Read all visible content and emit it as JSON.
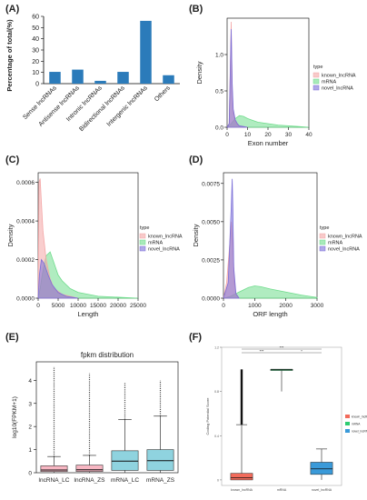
{
  "panels": {
    "A": "(A)",
    "B": "(B)",
    "C": "(C)",
    "D": "(D)",
    "E": "(E)",
    "F": "(F)"
  },
  "colors": {
    "bar": "#2b7bba",
    "known": "#f4a6a6",
    "mrna": "#6fdc8c",
    "novel": "#7b6fd8",
    "box_lnc": "#f7b6c2",
    "box_mrna": "#8fd3df",
    "f_known": "#f26b5b",
    "f_mrna": "#2ecc71",
    "f_novel": "#3a9ad9"
  },
  "chart_data": [
    {
      "id": "A",
      "type": "bar",
      "ylabel": "Percentage of total(%)",
      "ylim": [
        0,
        60
      ],
      "yticks": [
        "0",
        "10",
        "20",
        "30",
        "40",
        "50",
        "60"
      ],
      "categories": [
        "Sense lncRNAs",
        "Antisense lncRNAs",
        "Intronic lncRNAs",
        "Bidirectional lncRNAs",
        "Intergenic lncRNAs",
        "Others"
      ],
      "values": [
        10.5,
        12.5,
        2.5,
        10.5,
        56,
        7.5
      ]
    },
    {
      "id": "B",
      "type": "area",
      "xlabel": "Exon number",
      "ylabel": "Density",
      "xlim": [
        0,
        40
      ],
      "ylim": [
        0,
        1.5
      ],
      "xticks": [
        "0",
        "10",
        "20",
        "30",
        "40"
      ],
      "yticks": [
        "0.0",
        "0.5",
        "1.0"
      ],
      "legend_title": "type",
      "legend": [
        "known_lncRNA",
        "mRNA",
        "novel_lncRNA"
      ],
      "series": [
        {
          "name": "known_lncRNA",
          "x": [
            0,
            1,
            2,
            2.5,
            3,
            4,
            5,
            6,
            8,
            10
          ],
          "y": [
            0,
            0.05,
            1.45,
            0.5,
            0.2,
            0.08,
            0.04,
            0.02,
            0.01,
            0
          ]
        },
        {
          "name": "mRNA",
          "x": [
            0,
            2,
            4,
            6,
            8,
            10,
            12,
            15,
            20,
            25,
            30,
            35,
            40
          ],
          "y": [
            0,
            0.05,
            0.12,
            0.16,
            0.15,
            0.12,
            0.1,
            0.07,
            0.05,
            0.03,
            0.02,
            0.01,
            0
          ]
        },
        {
          "name": "novel_lncRNA",
          "x": [
            0,
            1,
            2,
            2.5,
            3,
            4,
            5,
            6,
            8,
            10
          ],
          "y": [
            0,
            0.05,
            1.35,
            0.6,
            0.25,
            0.1,
            0.05,
            0.02,
            0.01,
            0
          ]
        }
      ]
    },
    {
      "id": "C",
      "type": "area",
      "xlabel": "Length",
      "ylabel": "Density",
      "xlim": [
        0,
        25000
      ],
      "ylim": [
        0,
        0.00065
      ],
      "xticks": [
        "0",
        "5000",
        "10000",
        "15000",
        "20000",
        "25000"
      ],
      "yticks": [
        "0.0000",
        "0.0002",
        "0.0004",
        "0.0006"
      ],
      "legend_title": "type",
      "legend": [
        "known_lncRNA",
        "mRNA",
        "novel_lncRNA"
      ],
      "series": [
        {
          "name": "known_lncRNA",
          "x": [
            0,
            200,
            500,
            800,
            1200,
            2000,
            3000,
            4000,
            6000,
            8000,
            10000
          ],
          "y": [
            0,
            0.0006,
            0.00062,
            0.0005,
            0.00035,
            0.0002,
            0.0001,
            5e-05,
            2e-05,
            1e-05,
            0
          ]
        },
        {
          "name": "mRNA",
          "x": [
            0,
            500,
            1000,
            2000,
            3000,
            4000,
            5000,
            6000,
            8000,
            10000,
            15000,
            20000,
            25000
          ],
          "y": [
            0,
            5e-05,
            0.00012,
            0.00022,
            0.00024,
            0.00018,
            0.00012,
            9e-05,
            5e-05,
            3e-05,
            1e-05,
            5e-06,
            0
          ]
        },
        {
          "name": "novel_lncRNA",
          "x": [
            0,
            300,
            800,
            1500,
            2500,
            3500,
            5000,
            7000,
            10000
          ],
          "y": [
            0,
            0.00012,
            0.0002,
            0.00018,
            0.00012,
            7e-05,
            3e-05,
            1e-05,
            0
          ]
        }
      ]
    },
    {
      "id": "D",
      "type": "area",
      "xlabel": "ORF length",
      "ylabel": "Density",
      "xlim": [
        0,
        3000
      ],
      "ylim": [
        0,
        0.0082
      ],
      "xticks": [
        "0",
        "1000",
        "2000",
        "3000"
      ],
      "yticks": [
        "0.0000",
        "0.0025",
        "0.0050",
        "0.0075"
      ],
      "legend_title": "type",
      "legend": [
        "known_lncRNA",
        "mRNA",
        "novel_lncRNA"
      ],
      "series": [
        {
          "name": "known_lncRNA",
          "x": [
            0,
            100,
            200,
            250,
            300,
            350,
            400,
            500
          ],
          "y": [
            0,
            0.001,
            0.0035,
            0.005,
            0.0035,
            0.001,
            0.0003,
            0
          ]
        },
        {
          "name": "mRNA",
          "x": [
            0,
            200,
            500,
            800,
            1000,
            1200,
            1500,
            2000,
            2500,
            3000
          ],
          "y": [
            0,
            0.0001,
            0.0004,
            0.0007,
            0.0008,
            0.00075,
            0.0006,
            0.0004,
            0.0002,
            5e-05
          ]
        },
        {
          "name": "novel_lncRNA",
          "x": [
            0,
            150,
            250,
            280,
            300,
            330,
            400,
            500
          ],
          "y": [
            0,
            0.001,
            0.006,
            0.0078,
            0.006,
            0.002,
            0.0003,
            0
          ]
        }
      ]
    },
    {
      "id": "E",
      "type": "box",
      "title": "fpkm distribution",
      "ylabel": "log10(FPKM+1)",
      "ylim": [
        0,
        4.8
      ],
      "yticks": [
        "0",
        "1",
        "2",
        "3",
        "4"
      ],
      "categories": [
        "lncRNA_LC",
        "lncRNA_ZS",
        "mRNA_LC",
        "mRNA_ZS"
      ],
      "boxes": [
        {
          "min": 0,
          "q1": 0.05,
          "median": 0.12,
          "q3": 0.3,
          "max": 0.7,
          "outlier_top": 4.6
        },
        {
          "min": 0,
          "q1": 0.05,
          "median": 0.13,
          "q3": 0.33,
          "max": 0.75,
          "outlier_top": 4.3
        },
        {
          "min": 0,
          "q1": 0.1,
          "median": 0.5,
          "q3": 0.95,
          "max": 2.3,
          "outlier_top": 3.9
        },
        {
          "min": 0,
          "q1": 0.1,
          "median": 0.52,
          "q3": 1.0,
          "max": 2.45,
          "outlier_top": 4.0
        }
      ]
    },
    {
      "id": "F",
      "type": "box",
      "ylabel": "Coding Potential Score",
      "ylim": [
        -0.05,
        1.2
      ],
      "yticks": [
        "0",
        "0.4",
        "0.8",
        "1.2"
      ],
      "categories": [
        "known_lncRNA",
        "mRNA",
        "novel_lncRNA"
      ],
      "significance": [
        "***",
        "*",
        "***"
      ],
      "legend": [
        "known_lncRNA",
        "mRNA",
        "novel_lncRNA"
      ],
      "boxes": [
        {
          "min": 0,
          "q1": 0.0,
          "median": 0.02,
          "q3": 0.06,
          "max": 0.5,
          "outlier_top": 1.0
        },
        {
          "min": 0.8,
          "q1": 0.99,
          "median": 1.0,
          "q3": 1.0,
          "max": 1.0,
          "outlier_top": 1.0
        },
        {
          "min": 0,
          "q1": 0.05,
          "median": 0.1,
          "q3": 0.16,
          "max": 0.28,
          "outlier_top": 0.34
        }
      ]
    }
  ]
}
